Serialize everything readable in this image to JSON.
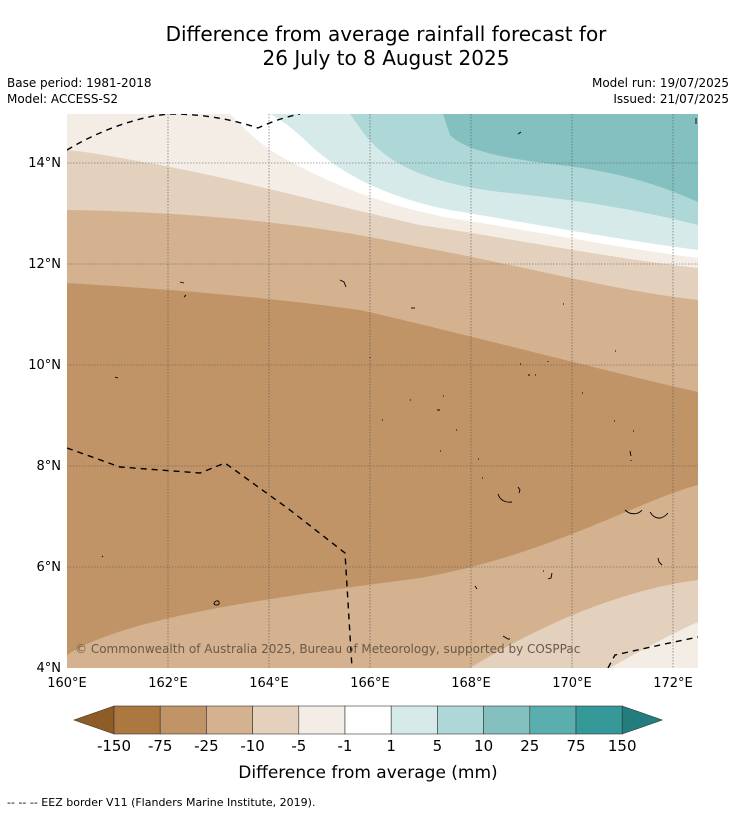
{
  "title_line1": "Difference from average rainfall forecast for",
  "title_line2": "26 July to 8 August 2025",
  "base_period": "Base period: 1981-2018",
  "model": "Model: ACCESS-S2",
  "model_run": "Model run: 19/07/2025",
  "issued": "Issued: 21/07/2025",
  "map": {
    "lon_ticks": [
      "160°E",
      "162°E",
      "164°E",
      "166°E",
      "168°E",
      "170°E",
      "172°E"
    ],
    "lat_ticks": [
      "4°N",
      "6°N",
      "8°N",
      "10°N",
      "12°N",
      "14°N"
    ],
    "lon_range": [
      160,
      172.5
    ],
    "lat_range": [
      4,
      15
    ],
    "copyright": "© Commonwealth of Australia 2025, Bureau of Meteorology, supported by COSPPac"
  },
  "colorbar": {
    "title": "Difference from average (mm)",
    "tick_labels": [
      "-150",
      "-75",
      "-25",
      "-10",
      "-5",
      "-1",
      "1",
      "5",
      "10",
      "25",
      "75",
      "150"
    ],
    "colors": [
      "#8f5b27",
      "#ad7740",
      "#c19467",
      "#d4b290",
      "#e3d0bd",
      "#f4ede6",
      "#ffffff",
      "#d6eaea",
      "#aed7d7",
      "#84c0c0",
      "#5aaeae",
      "#35999a",
      "#237d7e"
    ]
  },
  "footnote": "--  --  -- EEZ border V11 (Flanders Marine Institute, 2019)."
}
